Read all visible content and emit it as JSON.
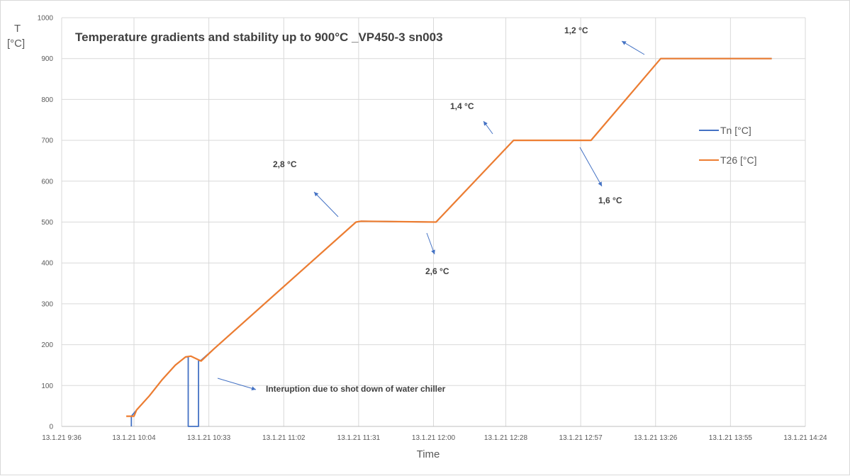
{
  "chart_data": {
    "type": "line",
    "title": "Temperature gradients and stability up to 900°C _VP450-3 sn003",
    "xlabel": "Time",
    "ylabel": "T\n[°C]",
    "ylabel_line1": "T",
    "ylabel_line2": "[°C]",
    "ylim": [
      0,
      1000
    ],
    "yticks": [
      "0",
      "100",
      "200",
      "300",
      "400",
      "500",
      "600",
      "700",
      "800",
      "900",
      "1000"
    ],
    "xticks": [
      "13.1.21 9:36",
      "13.1.21 10:04",
      "13.1.21 10:33",
      "13.1.21 11:02",
      "13.1.21 11:31",
      "13.1.21 12:00",
      "13.1.21 12:28",
      "13.1.21 12:57",
      "13.1.21 13:26",
      "13.1.21 13:55",
      "13.1.21 14:24"
    ],
    "xlim": [
      "13.1.21 9:36",
      "13.1.21 14:24"
    ],
    "grid": true,
    "legend_position": "right",
    "series": [
      {
        "name": "Tn [°C]",
        "color": "#4472c4",
        "x": [
          "13.1.21 10:03",
          "13.1.21 10:03",
          "13.1.21 10:05",
          "13.1.21 10:10",
          "13.1.21 10:15",
          "13.1.21 10:20",
          "13.1.21 10:24",
          "13.1.21 10:25",
          "13.1.21 10:25",
          "13.1.21 10:29",
          "13.1.21 10:29",
          "13.1.21 10:30",
          "13.1.21 10:35",
          "13.1.21 11:30",
          "13.1.21 11:32",
          "13.1.21 12:01",
          "13.1.21 12:01",
          "13.1.21 12:31",
          "13.1.21 13:01",
          "13.1.21 13:28",
          "13.1.21 14:11"
        ],
        "y": [
          0,
          25,
          40,
          75,
          115,
          150,
          170,
          170,
          0,
          0,
          160,
          162,
          190,
          500,
          502,
          500,
          500,
          700,
          700,
          900,
          900
        ]
      },
      {
        "name": "T26 [°C]",
        "color": "#ed7d31",
        "x": [
          "13.1.21 10:01",
          "13.1.21 10:04",
          "13.1.21 10:05",
          "13.1.21 10:10",
          "13.1.21 10:15",
          "13.1.21 10:20",
          "13.1.21 10:24",
          "13.1.21 10:26",
          "13.1.21 10:30",
          "13.1.21 10:35",
          "13.1.21 11:30",
          "13.1.21 11:32",
          "13.1.21 12:01",
          "13.1.21 12:01",
          "13.1.21 12:31",
          "13.1.21 13:01",
          "13.1.21 13:28",
          "13.1.21 14:11"
        ],
        "y": [
          25,
          25,
          40,
          75,
          115,
          150,
          170,
          172,
          160,
          190,
          500,
          502,
          500,
          500,
          700,
          700,
          900,
          900
        ]
      }
    ],
    "annotations": [
      {
        "text": "1,2 °C",
        "color": "#4472c4"
      },
      {
        "text": "1,4 °C",
        "color": "#4472c4"
      },
      {
        "text": "1,6 °C",
        "color": "#4472c4"
      },
      {
        "text": "2,8 °C",
        "color": "#4472c4"
      },
      {
        "text": "2,6 °C",
        "color": "#4472c4"
      },
      {
        "text": "Interuption due to shot down of water chiller",
        "color": "#4472c4"
      }
    ]
  }
}
